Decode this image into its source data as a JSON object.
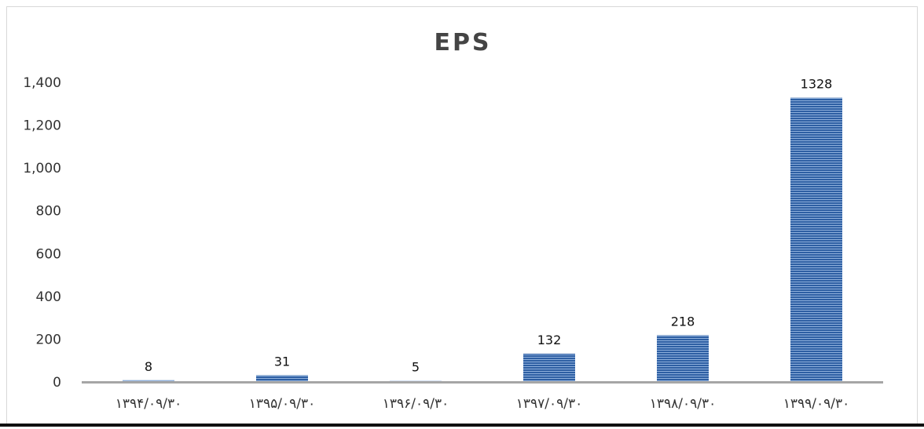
{
  "chart_data": {
    "type": "bar",
    "title": "EPS",
    "xlabel": "",
    "ylabel": "",
    "categories": [
      "۱۳۹۴/۰۹/۳۰",
      "۱۳۹۵/۰۹/۳۰",
      "۱۳۹۶/۰۹/۳۰",
      "۱۳۹۷/۰۹/۳۰",
      "۱۳۹۸/۰۹/۳۰",
      "۱۳۹۹/۰۹/۳۰"
    ],
    "values": [
      8,
      31,
      5,
      132,
      218,
      1328
    ],
    "data_labels": [
      "8",
      "31",
      "5",
      "132",
      "218",
      "1328"
    ],
    "ylim": [
      0,
      1400
    ],
    "yticks": [
      "0",
      "200",
      "400",
      "600",
      "800",
      "1,000",
      "1,200",
      "1,400"
    ],
    "grid": false,
    "legend": "none",
    "colors": {
      "bar": "#2e5fa3",
      "bar_stripe": "#8fb0dc",
      "axis": "#a6a6a6",
      "title": "#444444"
    }
  }
}
